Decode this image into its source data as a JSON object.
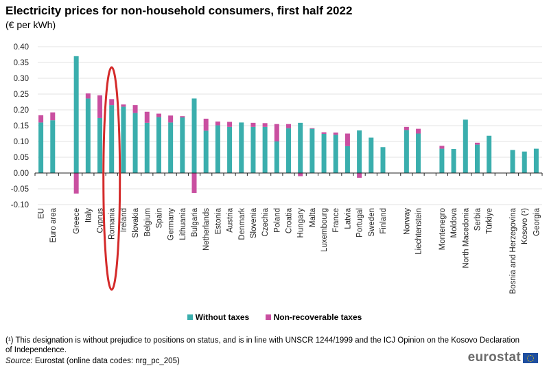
{
  "header": {
    "title": "Electricity prices for non-household consumers, first half 2022",
    "subtitle": "(€ per kWh)"
  },
  "legend": {
    "items": [
      {
        "label": "Without taxes",
        "color": "#3aaead"
      },
      {
        "label": "Non-recoverable taxes",
        "color": "#c94fa0"
      }
    ]
  },
  "footer": {
    "footnote": "(¹) This designation is without prejudice to positions on status, and is in line with UNSCR 1244/1999 and the ICJ Opinion on the Kosovo Declaration of Independence.",
    "source_label": "Source:",
    "source_text": " Eurostat (online data codes: nrg_pc_205)",
    "logo_text": "eurostat"
  },
  "chart_data": {
    "type": "bar",
    "stacked": true,
    "title": "Electricity prices for non-household consumers, first half 2022",
    "subtitle": "(€ per kWh)",
    "xlabel": "",
    "ylabel": "€ per kWh",
    "ylim": [
      -0.1,
      0.4
    ],
    "yticks": [
      0.4,
      0.35,
      0.3,
      0.25,
      0.2,
      0.15,
      0.1,
      0.05,
      0.0,
      -0.05,
      -0.1
    ],
    "ytick_labels": [
      "0.40",
      "0.35",
      "0.30",
      "0.25",
      "0.20",
      "0.15",
      "0.10",
      "0.05",
      "0.00",
      "-0.05",
      "-0.10"
    ],
    "grid": true,
    "legend_position": "bottom",
    "annotation": "Red ellipse highlighting Romania",
    "highlighted_category": "Romania",
    "categories": [
      "EU",
      "Euro area",
      "",
      "Greece",
      "Italy",
      "Cyprus",
      "Romania",
      "Ireland",
      "Slovakia",
      "Belgium",
      "Spain",
      "Germany",
      "Lithuania",
      "Bulgaria",
      "Netherlands",
      "Estonia",
      "Austria",
      "Denmark",
      "Slovenia",
      "Czechia",
      "Poland",
      "Croatia",
      "Hungary",
      "Malta",
      "Luxembourg",
      "France",
      "Latvia",
      "Portugal",
      "Sweden",
      "Finland",
      "",
      "Norway",
      "Liechtenstein",
      "",
      "Montenegro",
      "Moldova",
      "North Macedonia",
      "Serbia",
      "Türkiye",
      "",
      "Bosnia and Herzegovina",
      "Kosovo (¹)",
      "Georgia"
    ],
    "series": [
      {
        "name": "Without taxes",
        "color": "#3aaead",
        "values": [
          0.16,
          0.167,
          null,
          0.37,
          0.236,
          0.174,
          0.215,
          0.21,
          0.19,
          0.159,
          0.177,
          0.16,
          0.176,
          0.236,
          0.134,
          0.151,
          0.146,
          0.16,
          0.146,
          0.146,
          0.1,
          0.142,
          0.159,
          0.14,
          0.124,
          0.121,
          0.085,
          0.135,
          0.112,
          0.082,
          null,
          0.136,
          0.125,
          null,
          0.077,
          0.076,
          0.169,
          0.09,
          0.118,
          null,
          0.073,
          0.068,
          0.077
        ]
      },
      {
        "name": "Non-recoverable taxes",
        "color": "#c94fa0",
        "values": [
          0.023,
          0.025,
          null,
          -0.065,
          0.016,
          0.072,
          0.019,
          0.007,
          0.025,
          0.035,
          0.011,
          0.022,
          0.004,
          -0.063,
          0.038,
          0.012,
          0.016,
          0.0,
          0.013,
          0.012,
          0.055,
          0.013,
          -0.01,
          0.002,
          0.005,
          0.007,
          0.04,
          -0.015,
          0.0,
          0.0,
          null,
          0.01,
          0.015,
          null,
          0.009,
          0.0,
          0.0,
          0.006,
          0.0,
          null,
          0.0,
          0.0,
          0.0
        ]
      }
    ]
  }
}
